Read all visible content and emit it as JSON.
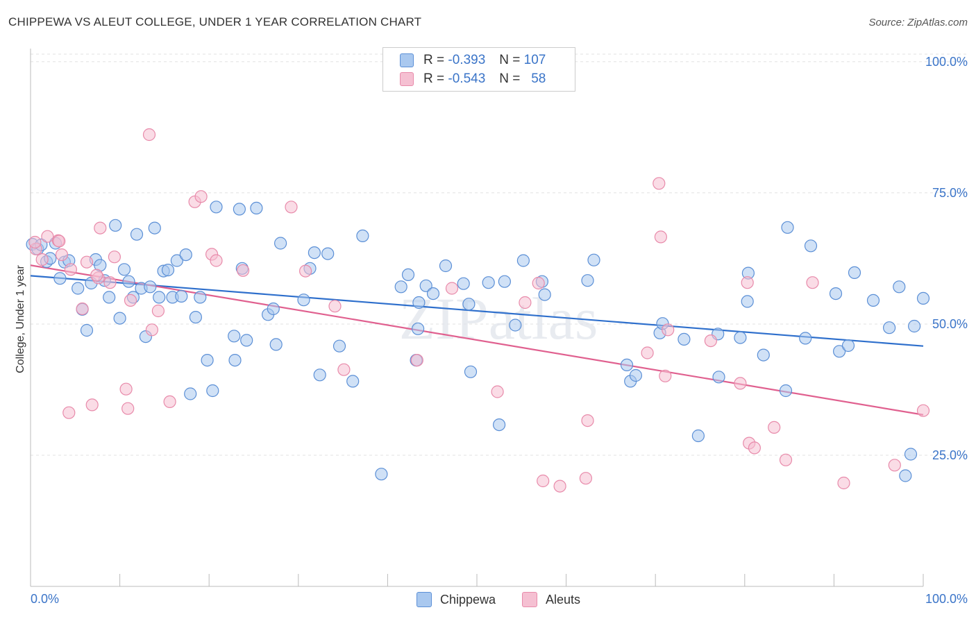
{
  "title": "CHIPPEWA VS ALEUT COLLEGE, UNDER 1 YEAR CORRELATION CHART",
  "source": "Source: ZipAtlas.com",
  "watermark": "ZIPatlas",
  "colors": {
    "chippewa_fill": "#a9c8ef",
    "chippewa_stroke": "#5b8fd6",
    "chippewa_line": "#2e6fcc",
    "aleuts_fill": "#f5c0d2",
    "aleuts_stroke": "#e88aaa",
    "aleuts_line": "#e0608f",
    "tick_text": "#3a74c8"
  },
  "legend": {
    "rows": [
      {
        "r_label": "R =",
        "r_value": "-0.393",
        "n_label": "N =",
        "n_value": "107"
      },
      {
        "r_label": "R =",
        "r_value": "-0.543",
        "n_label": "N =",
        "n_value": "58"
      }
    ]
  },
  "bottom_legend": [
    "Chippewa",
    "Aleuts"
  ],
  "chart_data": {
    "type": "scatter",
    "title": "CHIPPEWA VS ALEUT COLLEGE, UNDER 1 YEAR CORRELATION CHART",
    "xlabel": "",
    "ylabel": "College, Under 1 year",
    "xlim": [
      0,
      100
    ],
    "ylim": [
      0,
      102.5
    ],
    "x_tick_labels": [
      "0.0%",
      "100.0%"
    ],
    "y_ticks": [
      25,
      50,
      75,
      100
    ],
    "y_tick_labels": [
      "25.0%",
      "50.0%",
      "75.0%",
      "100.0%"
    ],
    "grid": true,
    "legend_position": "top-center",
    "series": [
      {
        "name": "Chippewa",
        "trend": {
          "x": [
            0,
            100
          ],
          "y": [
            59.2,
            45.8
          ]
        },
        "points": [
          [
            0.2,
            65.2
          ],
          [
            0.8,
            64.3
          ],
          [
            1.2,
            65.1
          ],
          [
            1.8,
            61.9
          ],
          [
            2.2,
            62.5
          ],
          [
            2.8,
            65.4
          ],
          [
            3.3,
            58.7
          ],
          [
            3.8,
            61.8
          ],
          [
            4.3,
            62.1
          ],
          [
            5.3,
            56.8
          ],
          [
            5.8,
            52.8
          ],
          [
            6.3,
            48.8
          ],
          [
            6.8,
            57.8
          ],
          [
            7.3,
            62.3
          ],
          [
            7.8,
            61.2
          ],
          [
            8.3,
            58.3
          ],
          [
            8.8,
            55.1
          ],
          [
            9.5,
            68.8
          ],
          [
            10,
            51.1
          ],
          [
            10.5,
            60.4
          ],
          [
            11,
            58.1
          ],
          [
            11.5,
            55.1
          ],
          [
            11.9,
            67.1
          ],
          [
            12.4,
            56.8
          ],
          [
            12.9,
            47.6
          ],
          [
            13.4,
            57.1
          ],
          [
            13.9,
            68.3
          ],
          [
            14.4,
            55.1
          ],
          [
            14.9,
            60.1
          ],
          [
            15.4,
            60.3
          ],
          [
            15.9,
            55.1
          ],
          [
            16.4,
            62.1
          ],
          [
            16.9,
            55.3
          ],
          [
            17.4,
            63.2
          ],
          [
            17.9,
            36.7
          ],
          [
            18.5,
            51.3
          ],
          [
            19,
            55.1
          ],
          [
            19.8,
            43.1
          ],
          [
            20.4,
            37.3
          ],
          [
            20.8,
            72.3
          ],
          [
            22.8,
            47.7
          ],
          [
            22.9,
            43.1
          ],
          [
            23.4,
            71.9
          ],
          [
            23.7,
            60.6
          ],
          [
            24.2,
            46.9
          ],
          [
            25.3,
            72.1
          ],
          [
            26.6,
            51.8
          ],
          [
            27.2,
            52.9
          ],
          [
            27.5,
            46.1
          ],
          [
            28,
            65.4
          ],
          [
            30.6,
            54.6
          ],
          [
            31.3,
            60.6
          ],
          [
            31.8,
            63.6
          ],
          [
            32.4,
            40.3
          ],
          [
            33.3,
            63.4
          ],
          [
            34.6,
            45.8
          ],
          [
            36.1,
            39.1
          ],
          [
            37.2,
            66.8
          ],
          [
            39.3,
            21.4
          ],
          [
            41.5,
            57.1
          ],
          [
            42.3,
            59.4
          ],
          [
            43.2,
            43.1
          ],
          [
            43.4,
            49.1
          ],
          [
            43.5,
            54.1
          ],
          [
            44.3,
            57.3
          ],
          [
            45.1,
            55.8
          ],
          [
            46.5,
            61.1
          ],
          [
            48.5,
            57.7
          ],
          [
            49.1,
            53.8
          ],
          [
            49.3,
            40.9
          ],
          [
            51.3,
            57.9
          ],
          [
            52.5,
            30.8
          ],
          [
            53.1,
            58.1
          ],
          [
            54.3,
            49.8
          ],
          [
            55.2,
            62.1
          ],
          [
            57.3,
            58.1
          ],
          [
            57.6,
            55.6
          ],
          [
            62.4,
            58.3
          ],
          [
            63.1,
            62.2
          ],
          [
            66.8,
            42.2
          ],
          [
            67.2,
            39.1
          ],
          [
            67.8,
            40.2
          ],
          [
            70.5,
            48.3
          ],
          [
            70.8,
            50.1
          ],
          [
            73.2,
            47.1
          ],
          [
            74.8,
            28.7
          ],
          [
            77,
            48.1
          ],
          [
            77.1,
            39.9
          ],
          [
            79.5,
            47.4
          ],
          [
            80.3,
            54.3
          ],
          [
            80.4,
            59.7
          ],
          [
            82.1,
            44.1
          ],
          [
            84.6,
            37.3
          ],
          [
            84.8,
            68.4
          ],
          [
            86.8,
            47.3
          ],
          [
            87.4,
            64.9
          ],
          [
            90.2,
            55.8
          ],
          [
            90.6,
            44.8
          ],
          [
            91.6,
            45.9
          ],
          [
            92.3,
            59.8
          ],
          [
            94.4,
            54.5
          ],
          [
            96.2,
            49.3
          ],
          [
            97.3,
            57.1
          ],
          [
            98,
            21.1
          ],
          [
            98.6,
            25.2
          ],
          [
            99,
            49.6
          ],
          [
            100,
            54.9
          ]
        ]
      },
      {
        "name": "Aleuts",
        "trend": {
          "x": [
            0,
            100
          ],
          "y": [
            61.2,
            32.7
          ]
        },
        "points": [
          [
            0.6,
            64.3
          ],
          [
            1.3,
            62.3
          ],
          [
            1.9,
            66.7
          ],
          [
            3.1,
            65.9
          ],
          [
            3.5,
            63.2
          ],
          [
            4.3,
            33.1
          ],
          [
            4.5,
            60.4
          ],
          [
            5.8,
            52.9
          ],
          [
            6.3,
            61.8
          ],
          [
            6.9,
            34.6
          ],
          [
            7.6,
            58.8
          ],
          [
            7.8,
            68.3
          ],
          [
            8.9,
            57.9
          ],
          [
            9.4,
            62.8
          ],
          [
            10.7,
            37.6
          ],
          [
            10.9,
            33.9
          ],
          [
            11.2,
            54.5
          ],
          [
            13.3,
            86.1
          ],
          [
            13.6,
            48.9
          ],
          [
            14.3,
            52.5
          ],
          [
            15.6,
            35.2
          ],
          [
            18.4,
            73.3
          ],
          [
            19.1,
            74.3
          ],
          [
            20.3,
            63.3
          ],
          [
            20.8,
            62.1
          ],
          [
            23.8,
            60.2
          ],
          [
            29.2,
            72.3
          ],
          [
            30.8,
            60.1
          ],
          [
            34.1,
            53.4
          ],
          [
            35.1,
            41.3
          ],
          [
            43.3,
            43.1
          ],
          [
            47.2,
            56.8
          ],
          [
            52.3,
            37.1
          ],
          [
            55.4,
            54.1
          ],
          [
            56.9,
            57.8
          ],
          [
            57.4,
            20.1
          ],
          [
            59.3,
            19.1
          ],
          [
            62.2,
            20.6
          ],
          [
            62.4,
            31.6
          ],
          [
            69.1,
            44.5
          ],
          [
            70.4,
            76.8
          ],
          [
            70.6,
            66.6
          ],
          [
            71.1,
            40.1
          ],
          [
            71.4,
            48.9
          ],
          [
            76.2,
            46.8
          ],
          [
            79.5,
            38.7
          ],
          [
            80.3,
            57.9
          ],
          [
            80.5,
            27.3
          ],
          [
            81.1,
            26.4
          ],
          [
            83.3,
            30.3
          ],
          [
            84.6,
            24.1
          ],
          [
            87.6,
            57.9
          ],
          [
            91.1,
            19.7
          ],
          [
            96.8,
            23.1
          ],
          [
            100,
            33.5
          ],
          [
            0.5,
            65.6
          ],
          [
            3.2,
            65.8
          ],
          [
            7.4,
            59.3
          ]
        ]
      }
    ]
  }
}
